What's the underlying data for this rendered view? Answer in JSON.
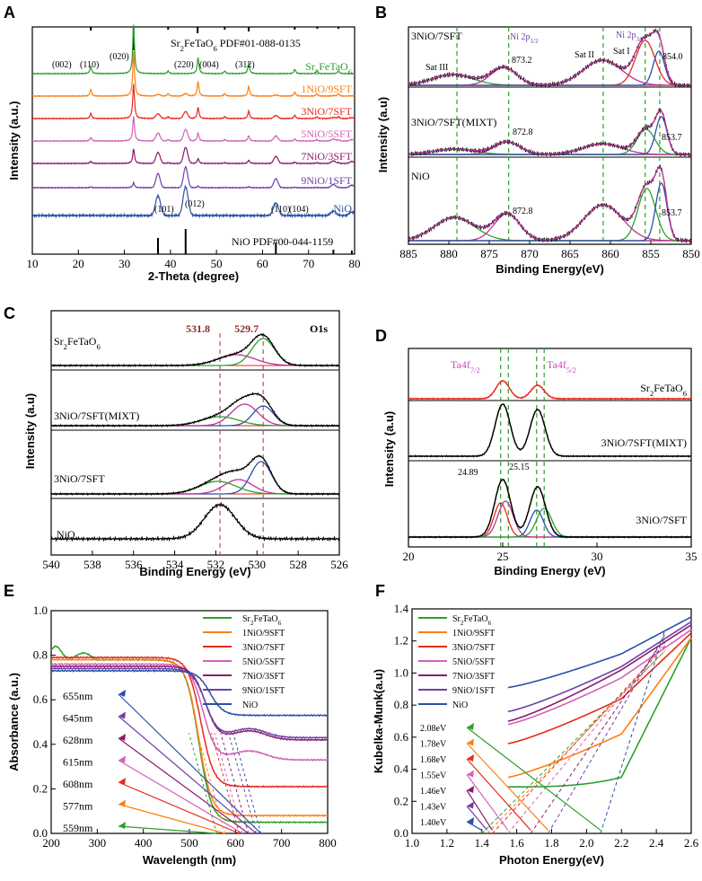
{
  "chart_data": [
    {
      "panel": "A",
      "type": "line",
      "xlabel": "2-Theta (degree)",
      "ylabel": "Intensity (a.u.)",
      "xlim": [
        10,
        80
      ],
      "xticks": [
        10,
        20,
        30,
        40,
        50,
        60,
        70,
        80
      ],
      "ref_top": "Sr2FeTaO6  PDF#01-088-0135",
      "ref_bottom": "NiO  PDF#00-044-1159",
      "peak_labels_top": [
        "(002)",
        "(110)",
        "(020)",
        "(220)",
        "(004)",
        "(312)"
      ],
      "peak_labels_bottom": [
        "(101)",
        "(012)",
        "(110)",
        "(104)"
      ],
      "series": [
        {
          "name": "Sr2FeTaO6",
          "color": "#2ca02c"
        },
        {
          "name": "1NiO/9SFT",
          "color": "#ff7f0e"
        },
        {
          "name": "3NiO/7SFT",
          "color": "#e8291c"
        },
        {
          "name": "5NiO/5SFT",
          "color": "#d262b8"
        },
        {
          "name": "7NiO/3SFT",
          "color": "#8b1a6b"
        },
        {
          "name": "9NiO/1SFT",
          "color": "#6f3fa8"
        },
        {
          "name": "NiO",
          "color": "#2b4fa8"
        }
      ]
    },
    {
      "panel": "B",
      "type": "line",
      "xlabel": "Binding Energy(eV)",
      "ylabel": "Intensity (a.u)",
      "xlim": [
        885,
        850
      ],
      "xticks": [
        885,
        880,
        875,
        870,
        865,
        860,
        855,
        850
      ],
      "sublabels": [
        "3NiO/7SFT",
        "3NiO/7SFT(MIXT)",
        "NiO"
      ],
      "annotations": [
        "Ni 2p1/2",
        "Ni 2p3/2",
        "Sat III",
        "Sat II",
        "Sat I",
        "873.2",
        "854.0",
        "872.8",
        "853.7",
        "872.8",
        "853.7"
      ]
    },
    {
      "panel": "C",
      "type": "line",
      "xlabel": "Binding Energy (eV)",
      "ylabel": "Intensity (a.u)",
      "xlim": [
        540,
        526
      ],
      "xticks": [
        540,
        538,
        536,
        534,
        532,
        530,
        528,
        526
      ],
      "sublabels": [
        "Sr2FeTaO6",
        "3NiO/7SFT(MIXT)",
        "3NiO/7SFT",
        "NiO"
      ],
      "annotations": [
        "531.8",
        "529.7",
        "O1s"
      ]
    },
    {
      "panel": "D",
      "type": "line",
      "xlabel": "Binding Energy (eV)",
      "ylabel": "Intensity (a.u)",
      "xlim": [
        20,
        35
      ],
      "xticks": [
        20,
        25,
        30,
        35
      ],
      "sublabels": [
        "Sr2FeTaO6",
        "3NiO/7SFT(MIXT)",
        "3NiO/7SFT"
      ],
      "annotations": [
        "Ta4f7/2",
        "Ta4f5/2",
        "24.89",
        "25.15"
      ]
    },
    {
      "panel": "E",
      "type": "line",
      "xlabel": "Wavelength (nm)",
      "ylabel": "Absorbance (a.u.)",
      "xlim": [
        200,
        800
      ],
      "ylim": [
        0.0,
        1.0
      ],
      "xticks": [
        200,
        300,
        400,
        500,
        600,
        700,
        800
      ],
      "yticks": [
        "0.0",
        "0.2",
        "0.4",
        "0.6",
        "0.8",
        "1.0"
      ],
      "legend": [
        "Sr2FeTaO6",
        "1NiO/9SFT",
        "3NiO/7SFT",
        "5NiO/5SFT",
        "7NiO/3SFT",
        "9NiO/1SFT",
        "NiO"
      ],
      "edge_labels": [
        "655nm",
        "645nm",
        "628nm",
        "615nm",
        "608nm",
        "577nm",
        "559nm"
      ],
      "edge_values": [
        655,
        645,
        628,
        615,
        608,
        577,
        559
      ]
    },
    {
      "panel": "F",
      "type": "line",
      "xlabel": "Photon Energy(eV)",
      "ylabel": "Kubelka-Munk(a.u)",
      "xlim": [
        1.0,
        2.6
      ],
      "ylim": [
        0.0,
        1.4
      ],
      "xticks": [
        "1.0",
        "1.2",
        "1.4",
        "1.6",
        "1.8",
        "2.0",
        "2.2",
        "2.4",
        "2.6"
      ],
      "yticks": [
        "0.0",
        "0.2",
        "0.4",
        "0.6",
        "0.8",
        "1.0",
        "1.2",
        "1.4"
      ],
      "legend": [
        "Sr2FeTaO6",
        "1NiO/9SFT",
        "3NiO/7SFT",
        "5NiO/5SFT",
        "7NiO/3SFT",
        "9NiO/1SFT",
        "NiO"
      ],
      "gap_labels": [
        "2.08eV",
        "1.78eV",
        "1.68eV",
        "1.55eV",
        "1.46eV",
        "1.43eV",
        "1.40eV"
      ],
      "gap_values": [
        2.08,
        1.78,
        1.68,
        1.55,
        1.46,
        1.43,
        1.4
      ]
    }
  ],
  "panel_letters": [
    "A",
    "B",
    "C",
    "D",
    "E",
    "F"
  ],
  "formula": {
    "base": "Sr",
    "s1": "2",
    "mid": "FeTaO",
    "s2": "6"
  },
  "colors": {
    "sft": "#2ca02c",
    "n19": "#ff7f0e",
    "n37": "#e8291c",
    "n55": "#d262b8",
    "n73": "#8b1a6b",
    "n91": "#6f3fa8",
    "nio": "#2b4fa8",
    "fit_magenta": "#c0309a",
    "fit_green": "#2ca02c",
    "fit_red": "#e8291c",
    "fit_blue": "#2b4fa8",
    "dash_brown": "#b05a4a",
    "peak_pink": "#c84fb8"
  }
}
